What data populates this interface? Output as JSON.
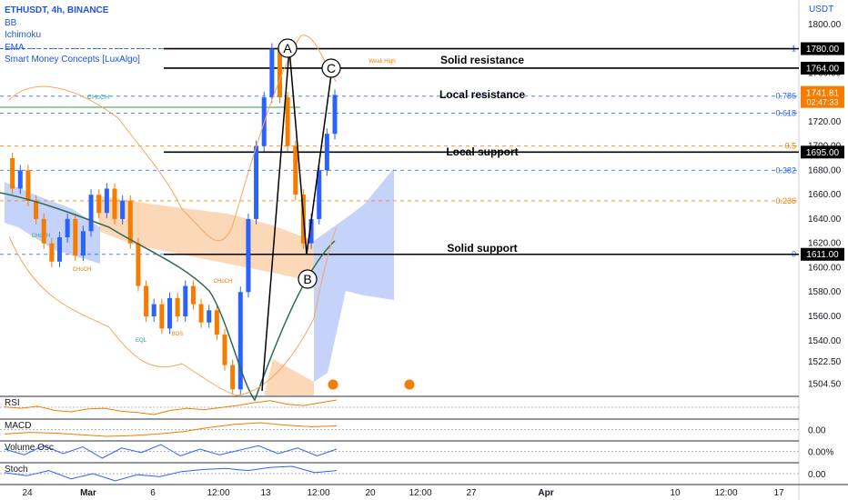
{
  "legend": {
    "symbol": "ETHUSDT, 4h, BINANCE",
    "indicators": [
      "BB",
      "Ichimoku",
      "EMA",
      "Smart Money Concepts [LuxAlgo]"
    ]
  },
  "price_unit": "USDT",
  "annotations": {
    "solid_resistance": "Solid resistance",
    "local_resistance": "Local resistance",
    "local_support": "Local support",
    "solid_support": "Solid support",
    "point_a": "A",
    "point_b": "B",
    "point_c": "C",
    "weak_high": "Weak High",
    "choch": "CHoCH",
    "eql": "EQL",
    "bos": "BOS"
  },
  "price_labels": {
    "solid_resistance": "1780.00",
    "local_resistance": "1764.00",
    "last_price": "1741.81",
    "countdown": "02:47:33",
    "local_support": "1695.00",
    "solid_support": "1611.00"
  },
  "colors": {
    "accent": "#1e53e5",
    "up": "#2962ff",
    "down": "#f57c00",
    "ema": "#2e6b50",
    "cloud_bear": "#f6a85f",
    "cloud_bull": "#7f9cf5",
    "line_black": "#000000"
  },
  "chart_data": [
    {
      "type": "line",
      "title": "ETHUSDT, 4h, BINANCE",
      "ylabel": "USDT",
      "ylim": [
        1495,
        1820
      ],
      "y_ticks": [
        1800.0,
        1760.0,
        1740.0,
        1720.0,
        1700.0,
        1680.0,
        1660.0,
        1640.0,
        1620.0,
        1600.0,
        1580.0,
        1560.0,
        1540.0,
        1522.5,
        1504.5
      ],
      "x_ticks": [
        "24",
        "Mar",
        "6",
        "12:00",
        "13",
        "12:00",
        "20",
        "12:00",
        "27",
        "Apr",
        "10",
        "12:00",
        "17"
      ],
      "horizontal_levels": [
        {
          "name": "Solid resistance",
          "value": 1780
        },
        {
          "name": "Local resistance",
          "value": 1764
        },
        {
          "name": "Local support",
          "value": 1695
        },
        {
          "name": "Solid support",
          "value": 1611
        }
      ],
      "fibonacci": [
        {
          "level": "1",
          "value": 1780
        },
        {
          "level": "0.786",
          "value": 1741
        },
        {
          "level": "0.618",
          "value": 1727
        },
        {
          "level": "0.5",
          "value": 1700
        },
        {
          "level": "0.382",
          "value": 1680
        },
        {
          "level": "0.236",
          "value": 1655
        },
        {
          "level": "0",
          "value": 1611
        }
      ],
      "series": [
        {
          "values": [
            1690,
            1665,
            1680,
            1655,
            1640,
            1620,
            1605,
            1625,
            1640,
            1610,
            1630,
            1660,
            1645,
            1665,
            1640,
            1655,
            1620,
            1585,
            1560,
            1570,
            1550,
            1575,
            1560,
            1585,
            1570,
            1555,
            1565,
            1545,
            1520,
            1500,
            1580,
            1640,
            1700,
            1740,
            1780,
            1740,
            1700,
            1660,
            1620,
            1640,
            1680,
            1710,
            1742
          ]
        }
      ],
      "abc_pattern": {
        "A": 1780,
        "B": 1611,
        "C": 1764
      },
      "last_price": 1741.81
    },
    {
      "type": "line",
      "title": "RSI",
      "series": [
        {
          "values": [
            46,
            44,
            47,
            41,
            39,
            43,
            44,
            40,
            38,
            35,
            41,
            44,
            42,
            45,
            48,
            52,
            55,
            50,
            48,
            52,
            56
          ]
        }
      ]
    },
    {
      "type": "line",
      "title": "MACD",
      "y_ticks": [
        0.0
      ],
      "series": [
        {
          "values": [
            0,
            2,
            1,
            -1,
            -3,
            -2,
            0,
            3,
            8,
            12,
            14,
            11,
            9,
            10
          ]
        }
      ]
    },
    {
      "type": "line",
      "title": "Volume Osc",
      "y_ticks": [
        "0.00%"
      ],
      "series": [
        {
          "values": [
            2,
            -3,
            5,
            -2,
            4,
            -6,
            3,
            -1,
            6,
            -4,
            2,
            -3,
            1,
            5,
            -2,
            3,
            -4,
            2
          ]
        }
      ]
    },
    {
      "type": "line",
      "title": "Stoch",
      "y_ticks": [
        0.0
      ],
      "series": [
        {
          "values": [
            60,
            45,
            70,
            30,
            55,
            20,
            50,
            40,
            65,
            75,
            80,
            70,
            85,
            90,
            60,
            70
          ]
        }
      ]
    }
  ]
}
